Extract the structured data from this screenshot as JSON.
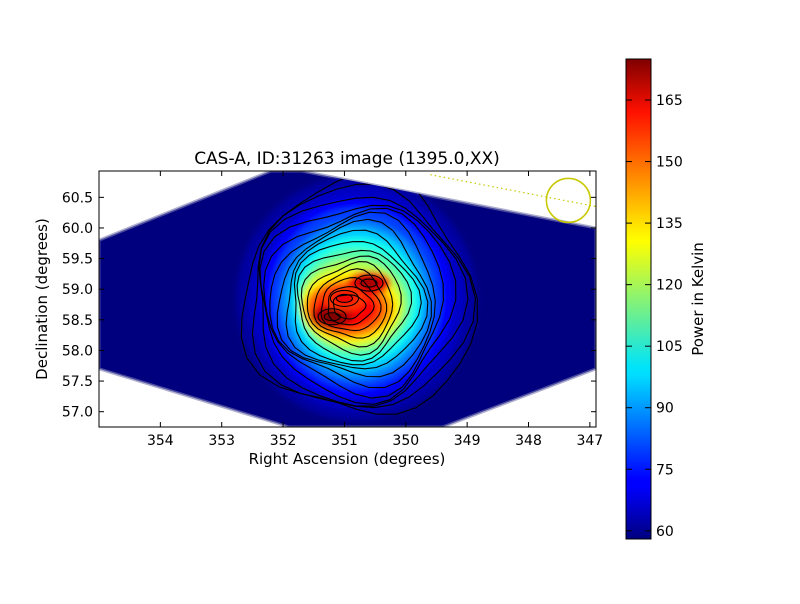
{
  "chart_data": {
    "type": "heatmap",
    "title": "CAS-A, ID:31263 image (1395.0,XX)",
    "xlabel": "Right Ascension (degrees)",
    "ylabel": "Declination (degrees)",
    "xlim": [
      355.0,
      346.9
    ],
    "ylim": [
      56.75,
      60.93
    ],
    "x_ticks": [
      "354",
      "353",
      "352",
      "351",
      "350",
      "349",
      "348",
      "347"
    ],
    "y_ticks": [
      "57.0",
      "57.5",
      "58.0",
      "58.5",
      "59.0",
      "59.5",
      "60.0",
      "60.5"
    ],
    "colorbar": {
      "label": "Power in Kelvin",
      "range": [
        58,
        175
      ],
      "ticks": [
        "60",
        "75",
        "90",
        "105",
        "120",
        "135",
        "150",
        "165"
      ],
      "colormap": "jet"
    },
    "image_footprint_corners_deg": [
      [
        351.7,
        60.93
      ],
      [
        346.9,
        60.0
      ],
      [
        346.9,
        57.7
      ],
      [
        349.4,
        56.75
      ],
      [
        351.9,
        56.75
      ],
      [
        355.0,
        57.7
      ],
      [
        355.0,
        59.8
      ],
      [
        352.2,
        60.93
      ]
    ],
    "peaks": [
      {
        "ra": 351.2,
        "dec": 58.55,
        "value": 175
      },
      {
        "ra": 350.6,
        "dec": 59.1,
        "value": 170
      },
      {
        "ra": 351.0,
        "dec": 58.85,
        "value": 162
      }
    ],
    "contours": {
      "count": 16,
      "color": "#000000"
    },
    "beam_marker": {
      "ra": 347.35,
      "dec": 60.45,
      "color": "#c8c800",
      "shape": "circle"
    },
    "beam_track": {
      "from_ra": 349.6,
      "from_dec": 60.87,
      "to_ra": 346.9,
      "to_dec": 60.35,
      "style": "dotted",
      "color": "#c8c800"
    },
    "background": "#00007f",
    "grid": false
  }
}
